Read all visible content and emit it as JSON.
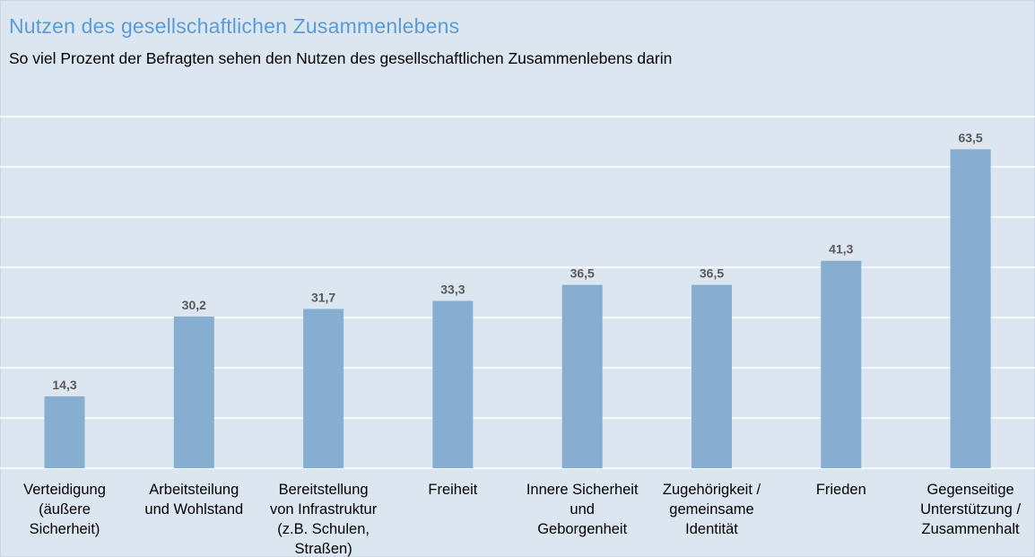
{
  "header": {
    "title": "Nutzen des gesellschaftlichen Zusammenlebens",
    "subtitle": "So viel Prozent der Befragten sehen den Nutzen des gesellschaftlichen Zusammenlebens darin"
  },
  "colors": {
    "bar": "#86aed1",
    "grid": "#ffffff",
    "title": "#5b9bd5",
    "value_label": "#595959"
  },
  "chart_data": {
    "type": "bar",
    "title": "Nutzen des gesellschaftlichen Zusammenlebens",
    "subtitle": "So viel Prozent der Befragten sehen den Nutzen des gesellschaftlichen Zusammenlebens darin",
    "categories": [
      [
        "Verteidigung",
        "(äußere",
        "Sicherheit)"
      ],
      [
        "Arbeitsteilung",
        "und Wohlstand"
      ],
      [
        "Bereitstellung",
        "von Infrastruktur",
        "(z.B. Schulen,",
        "Straßen)"
      ],
      [
        "Freiheit"
      ],
      [
        "Innere Sicherheit",
        "und",
        "Geborgenheit"
      ],
      [
        "Zugehörigkeit /",
        "gemeinsame",
        "Identität"
      ],
      [
        "Frieden"
      ],
      [
        "Gegenseitige",
        "Unterstützung /",
        "Zusammenhalt"
      ]
    ],
    "values": [
      14.3,
      30.2,
      31.7,
      33.3,
      36.5,
      36.5,
      41.3,
      63.5
    ],
    "value_labels": [
      "14,3",
      "30,2",
      "31,7",
      "33,3",
      "36,5",
      "36,5",
      "41,3",
      "63,5"
    ],
    "ylim": [
      0,
      70
    ],
    "grid_step": 10,
    "grid": true,
    "legend": "none",
    "xlabel": "",
    "ylabel": ""
  }
}
